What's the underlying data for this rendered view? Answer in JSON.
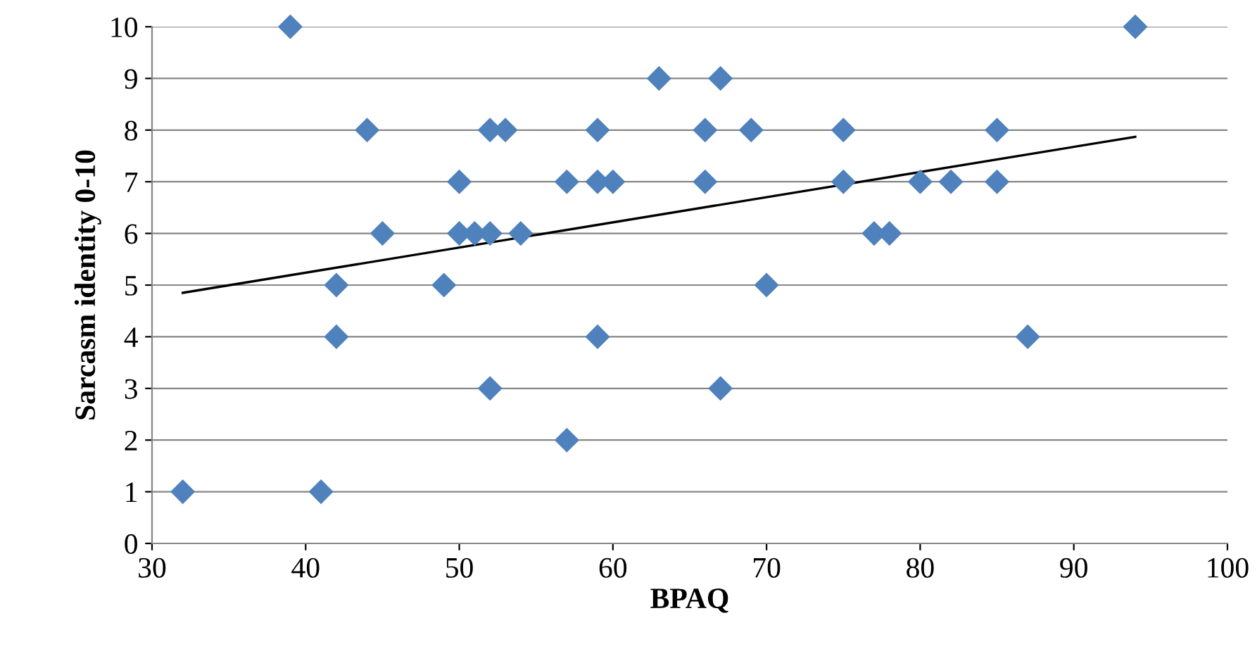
{
  "chart_data": {
    "type": "scatter",
    "xlabel": "BPAQ",
    "ylabel": "Sarcasm identity 0-10",
    "xlim": [
      30,
      100
    ],
    "xticks": [
      30,
      40,
      50,
      60,
      70,
      80,
      90,
      100
    ],
    "ylim": [
      0,
      10
    ],
    "yticks": [
      0,
      1,
      2,
      3,
      4,
      5,
      6,
      7,
      8,
      9,
      10
    ],
    "grid": "y",
    "series": [
      {
        "marker": "diamond",
        "color": "#4f81bd",
        "x": [
          39,
          94,
          63,
          67,
          44,
          52,
          53,
          59,
          66,
          69,
          75,
          85,
          50,
          57,
          59,
          60,
          66,
          75,
          80,
          82,
          85,
          45,
          50,
          51,
          52,
          54,
          77,
          78,
          42,
          49,
          70,
          42,
          59,
          87,
          52,
          67,
          57,
          32,
          41
        ],
        "values": [
          10,
          10,
          9,
          9,
          8,
          8,
          8,
          8,
          8,
          8,
          8,
          8,
          7,
          7,
          7,
          7,
          7,
          7,
          7,
          7,
          7,
          6,
          6,
          6,
          6,
          6,
          6,
          6,
          5,
          5,
          5,
          4,
          4,
          4,
          3,
          3,
          2,
          1,
          1
        ]
      },
      {
        "type": "line",
        "color": "#000000",
        "x": [
          32,
          94
        ],
        "values": [
          4.85,
          7.87
        ]
      }
    ]
  }
}
